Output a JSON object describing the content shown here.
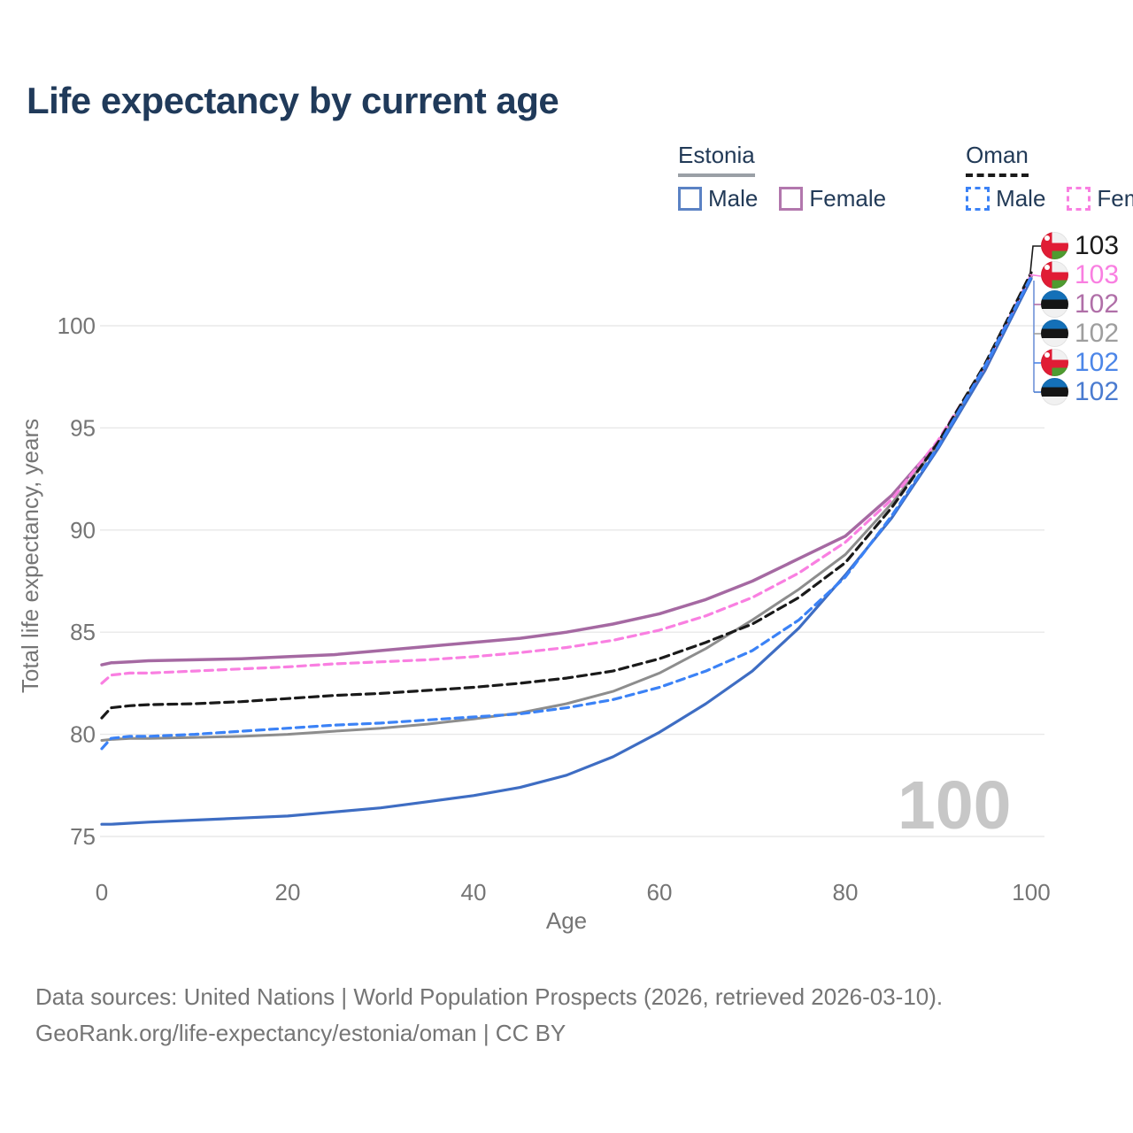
{
  "title": "Life expectancy by current age",
  "colors": {
    "title_text": "#203a5a",
    "legend_text": "#223a57",
    "axis_text": "#757575",
    "grid_line": "#e8e8e8",
    "watermark_text": "#c7c7c7",
    "estonia_underline": "#9aa0a6",
    "oman_underline": "#1a1a1a"
  },
  "legend": {
    "groups": [
      {
        "id": "estonia",
        "title": "Estonia",
        "line_style": "solid",
        "items": [
          {
            "label": "Male",
            "color": "#5b82c4"
          },
          {
            "label": "Female",
            "color": "#b277ad"
          }
        ]
      },
      {
        "id": "oman",
        "title": "Oman",
        "line_style": "dashed",
        "items": [
          {
            "label": "Male",
            "color": "#3b82f6"
          },
          {
            "label": "Female",
            "color": "#f97fe1"
          }
        ]
      }
    ]
  },
  "chart_data": {
    "type": "line",
    "title": "Life expectancy by current age",
    "xlabel": "Age",
    "ylabel": "Total life expectancy, years",
    "xlim": [
      0,
      100
    ],
    "ylim": [
      73.5,
      103.8
    ],
    "xticks": [
      0,
      20,
      40,
      60,
      80,
      100
    ],
    "yticks": [
      75,
      80,
      85,
      90,
      95,
      100
    ],
    "grid": "horizontal",
    "legend_position": "top-right",
    "x": [
      0,
      1,
      3,
      5,
      10,
      15,
      20,
      25,
      30,
      35,
      40,
      45,
      50,
      55,
      60,
      65,
      70,
      75,
      80,
      85,
      90,
      95,
      100
    ],
    "series": [
      {
        "name": "Estonia Female",
        "country": "Estonia",
        "sex": "Female",
        "color": "#a569a2",
        "dash": null,
        "width": 3.5,
        "values": [
          83.4,
          83.5,
          83.55,
          83.6,
          83.65,
          83.7,
          83.8,
          83.9,
          84.1,
          84.3,
          84.5,
          84.7,
          85.0,
          85.4,
          85.9,
          86.6,
          87.5,
          88.6,
          89.7,
          91.7,
          94.3,
          97.8,
          102.4
        ]
      },
      {
        "name": "Estonia Total",
        "country": "Estonia",
        "sex": "Total",
        "color": "#8d8d8d",
        "dash": null,
        "width": 3,
        "values": [
          79.7,
          79.75,
          79.8,
          79.8,
          79.85,
          79.9,
          80.0,
          80.15,
          80.3,
          80.5,
          80.75,
          81.05,
          81.5,
          82.1,
          83.0,
          84.2,
          85.6,
          87.1,
          88.8,
          91.3,
          94.2,
          98.0,
          102.4
        ]
      },
      {
        "name": "Estonia Male",
        "country": "Estonia",
        "sex": "Male",
        "color": "#3e6dc3",
        "dash": null,
        "width": 3.2,
        "values": [
          75.6,
          75.6,
          75.65,
          75.7,
          75.8,
          75.9,
          76.0,
          76.2,
          76.4,
          76.7,
          77.0,
          77.4,
          78.0,
          78.9,
          80.1,
          81.5,
          83.1,
          85.2,
          87.8,
          90.6,
          94.0,
          97.8,
          102.3
        ]
      },
      {
        "name": "Oman Female",
        "country": "Oman",
        "sex": "Female",
        "color": "#f97fe1",
        "dash": "9 6",
        "width": 3.2,
        "values": [
          82.5,
          82.9,
          83.0,
          83.0,
          83.1,
          83.2,
          83.3,
          83.45,
          83.55,
          83.65,
          83.8,
          84.0,
          84.25,
          84.6,
          85.1,
          85.8,
          86.7,
          87.9,
          89.4,
          91.5,
          94.4,
          98.0,
          102.5
        ]
      },
      {
        "name": "Oman Total",
        "country": "Oman",
        "sex": "Total",
        "color": "#1a1a1a",
        "dash": "10 6",
        "width": 3.2,
        "values": [
          80.8,
          81.3,
          81.4,
          81.45,
          81.5,
          81.6,
          81.75,
          81.9,
          82.0,
          82.15,
          82.3,
          82.5,
          82.75,
          83.1,
          83.7,
          84.5,
          85.4,
          86.7,
          88.4,
          91.1,
          94.3,
          98.1,
          102.6
        ]
      },
      {
        "name": "Oman Male",
        "country": "Oman",
        "sex": "Male",
        "color": "#3b82f6",
        "dash": "9 6",
        "width": 3.2,
        "values": [
          79.3,
          79.8,
          79.9,
          79.9,
          80.0,
          80.15,
          80.3,
          80.45,
          80.55,
          80.7,
          80.85,
          81.0,
          81.3,
          81.7,
          82.3,
          83.1,
          84.1,
          85.6,
          87.7,
          90.7,
          94.1,
          98.0,
          102.4
        ]
      }
    ]
  },
  "end_labels": [
    {
      "label": "103",
      "series": "Oman Total",
      "flag": "oman",
      "color": "#1a1a1a"
    },
    {
      "label": "103",
      "series": "Oman Female",
      "flag": "oman",
      "color": "#f97fe1"
    },
    {
      "label": "102",
      "series": "Estonia Female",
      "flag": "estonia",
      "color": "#b06fa8"
    },
    {
      "label": "102",
      "series": "Estonia Total",
      "flag": "estonia",
      "color": "#9e9e9e"
    },
    {
      "label": "102",
      "series": "Oman Male",
      "flag": "oman",
      "color": "#4c86e8"
    },
    {
      "label": "102",
      "series": "Estonia Male",
      "flag": "estonia",
      "color": "#4a7bd0"
    }
  ],
  "watermark": "100",
  "footer": {
    "line1": "Data sources: United Nations | World Population Prospects (2026, retrieved 2026-03-10).",
    "line2": "GeoRank.org/life-expectancy/estonia/oman | CC BY"
  }
}
